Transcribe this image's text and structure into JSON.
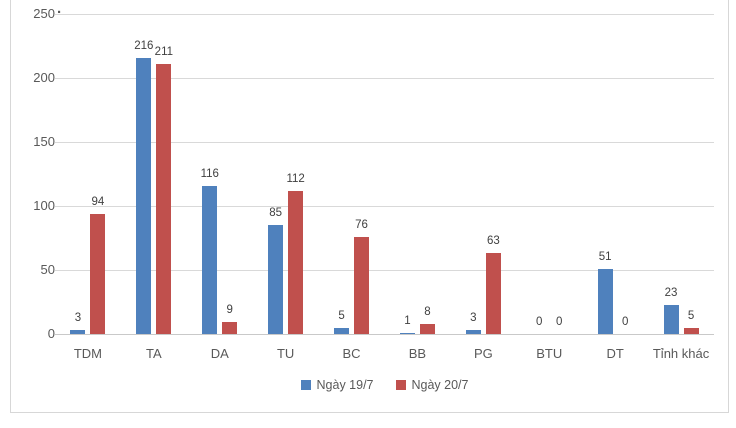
{
  "chart_data": {
    "type": "bar",
    "title": "",
    "xlabel": "",
    "ylabel": "",
    "categories": [
      "TDM",
      "TA",
      "DA",
      "TU",
      "BC",
      "BB",
      "PG",
      "BTU",
      "DT",
      "Tỉnh khác"
    ],
    "series": [
      {
        "name": "Ngày 19/7",
        "color": "#4F81BD",
        "values": [
          3,
          216,
          116,
          85,
          5,
          1,
          3,
          0,
          51,
          23
        ]
      },
      {
        "name": "Ngày 20/7",
        "color": "#C0504D",
        "values": [
          94,
          211,
          9,
          112,
          76,
          8,
          63,
          0,
          0,
          5
        ]
      }
    ],
    "ylim": [
      0,
      250
    ],
    "y_ticks": [
      0,
      50,
      100,
      150,
      200,
      250
    ],
    "grid": true,
    "legend_position": "bottom",
    "value_labels_shown": true,
    "artifact_dot": "."
  },
  "colors": {
    "grid": "#D9D9D9",
    "axis_line": "#C9C9C9",
    "axis_text": "#595959",
    "value_label_text": "#404040",
    "frame_border": "#D7D7D7",
    "background": "#FFFFFF"
  }
}
